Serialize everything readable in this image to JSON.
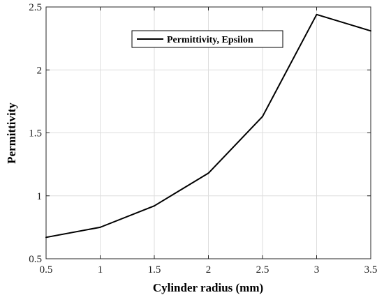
{
  "chart_data": {
    "type": "line",
    "title": "",
    "xlabel": "Cylinder radius (mm)",
    "ylabel": "Permittivity",
    "xlim": [
      0.5,
      3.5
    ],
    "ylim": [
      0.5,
      2.5
    ],
    "xticks": [
      "0.5",
      "1",
      "1.5",
      "2",
      "2.5",
      "3",
      "3.5"
    ],
    "yticks": [
      "0.5",
      "1",
      "1.5",
      "2",
      "2.5"
    ],
    "grid": true,
    "legend_position": "top-center",
    "series": [
      {
        "name": "Permittivity, Epsilon",
        "color": "#000000",
        "x": [
          0.5,
          1,
          1.5,
          2,
          2.5,
          3,
          3.5
        ],
        "y": [
          0.67,
          0.75,
          0.92,
          1.18,
          1.63,
          2.44,
          2.31
        ]
      }
    ]
  }
}
